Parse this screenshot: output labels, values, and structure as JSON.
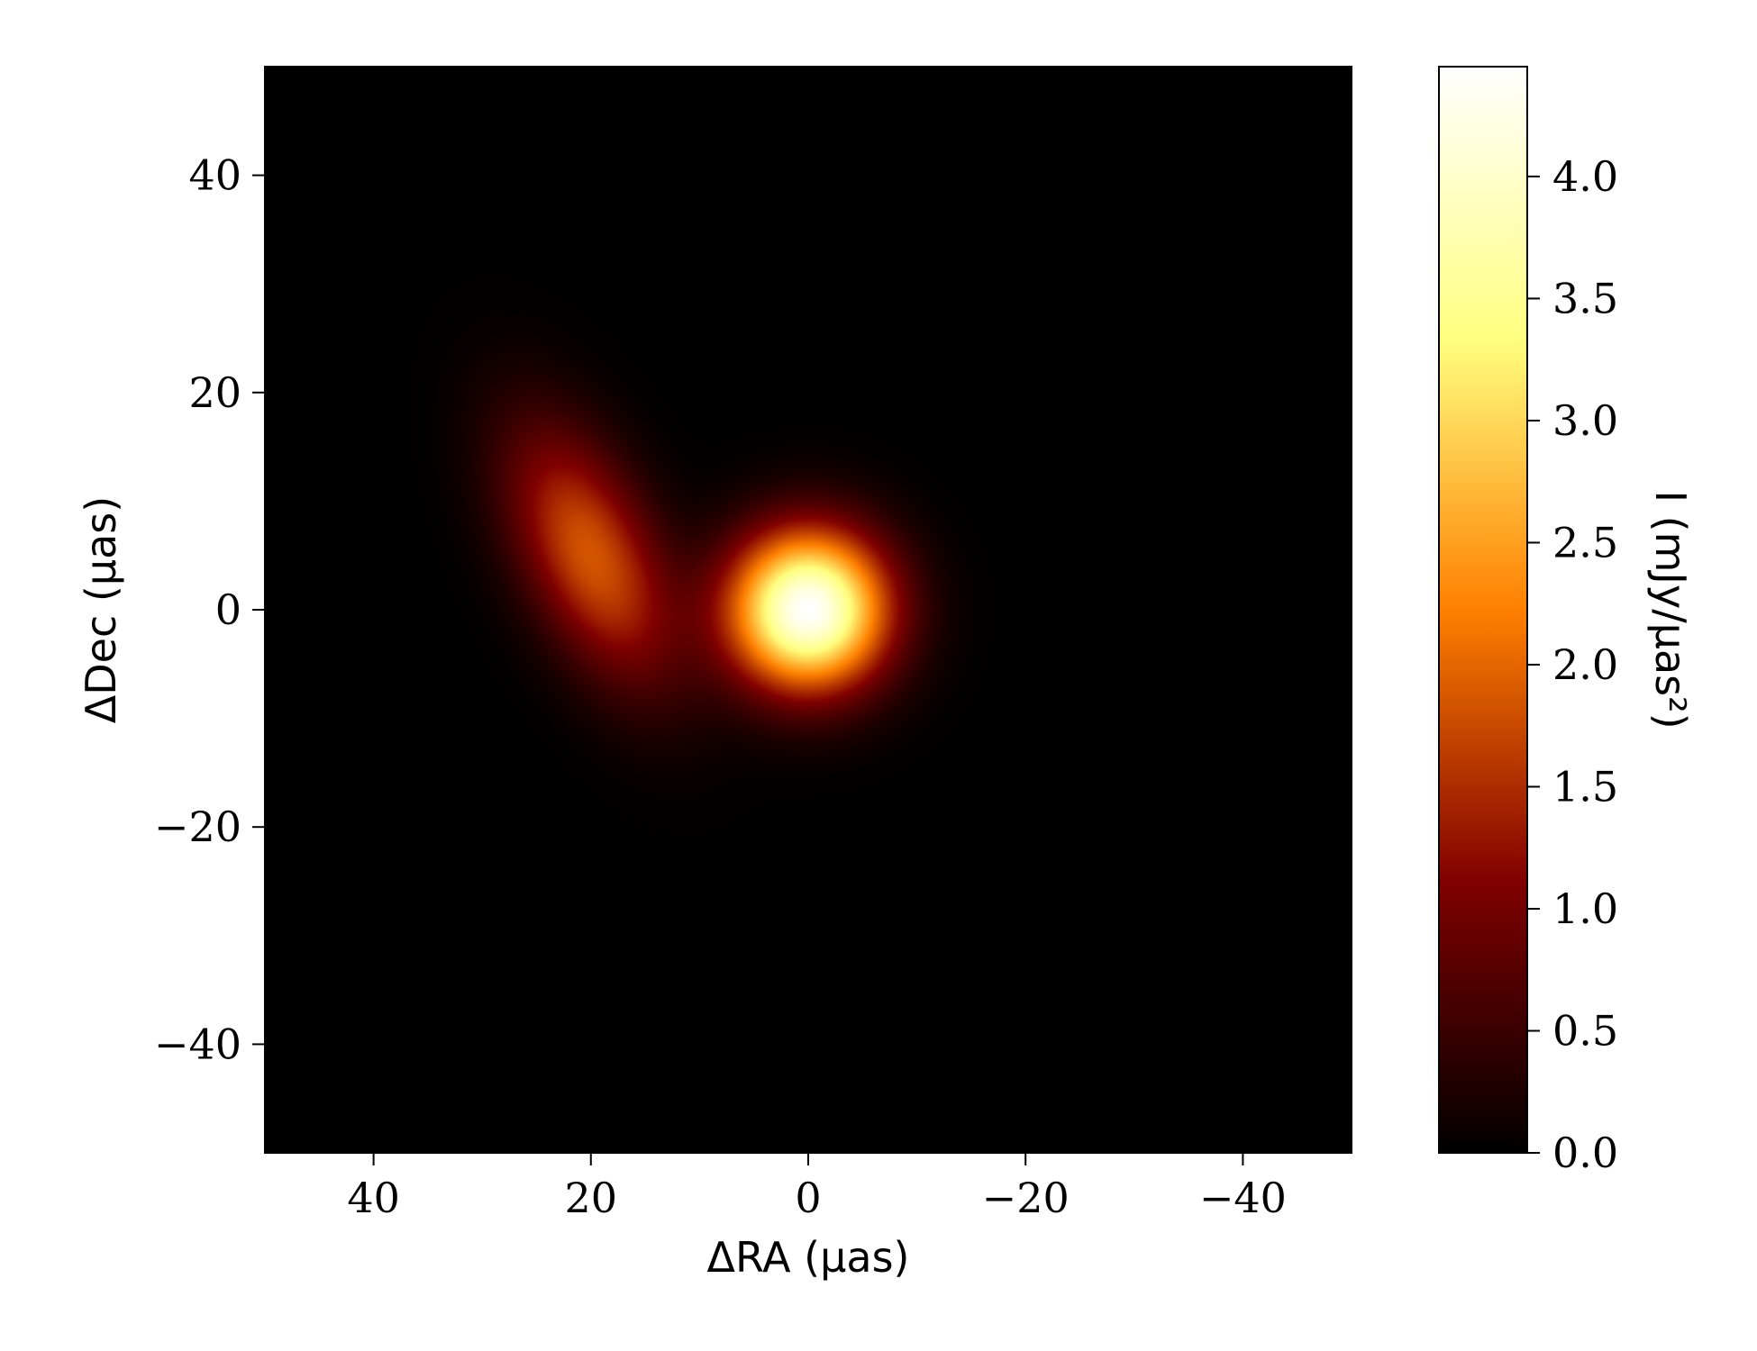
{
  "chart_data": {
    "type": "heatmap",
    "title": "",
    "xlabel": "ΔRA (μas)",
    "ylabel": "ΔDec (μas)",
    "colorbar_label": "I (mJy/μas²)",
    "colormap": "afmhot",
    "xlim": [
      50,
      -50
    ],
    "ylim": [
      -50,
      50
    ],
    "vlim": [
      0,
      4.45
    ],
    "x_ticks": [
      {
        "value": 40,
        "label": "40"
      },
      {
        "value": 20,
        "label": "20"
      },
      {
        "value": 0,
        "label": "0"
      },
      {
        "value": -20,
        "label": "−20"
      },
      {
        "value": -40,
        "label": "−40"
      }
    ],
    "y_ticks": [
      {
        "value": 40,
        "label": "40"
      },
      {
        "value": 20,
        "label": "20"
      },
      {
        "value": 0,
        "label": "0"
      },
      {
        "value": -20,
        "label": "−20"
      },
      {
        "value": -40,
        "label": "−40"
      }
    ],
    "colorbar_ticks": [
      {
        "value": 0.0,
        "label": "0.0"
      },
      {
        "value": 0.5,
        "label": "0.5"
      },
      {
        "value": 1.0,
        "label": "1.0"
      },
      {
        "value": 1.5,
        "label": "1.5"
      },
      {
        "value": 2.0,
        "label": "2.0"
      },
      {
        "value": 2.5,
        "label": "2.5"
      },
      {
        "value": 3.0,
        "label": "3.0"
      },
      {
        "value": 3.5,
        "label": "3.5"
      },
      {
        "value": 4.0,
        "label": "4.0"
      }
    ],
    "components": [
      {
        "shape": "circular-gaussian",
        "center_ra": 0,
        "center_dec": 0,
        "fwhm": 12,
        "peak": 4.45
      },
      {
        "shape": "elliptical-gaussian",
        "center_ra": 20,
        "center_dec": 5,
        "fwhm_major": 21,
        "fwhm_minor": 10,
        "position_angle_deg": 25,
        "peak": 1.85
      }
    ],
    "grid": false
  }
}
